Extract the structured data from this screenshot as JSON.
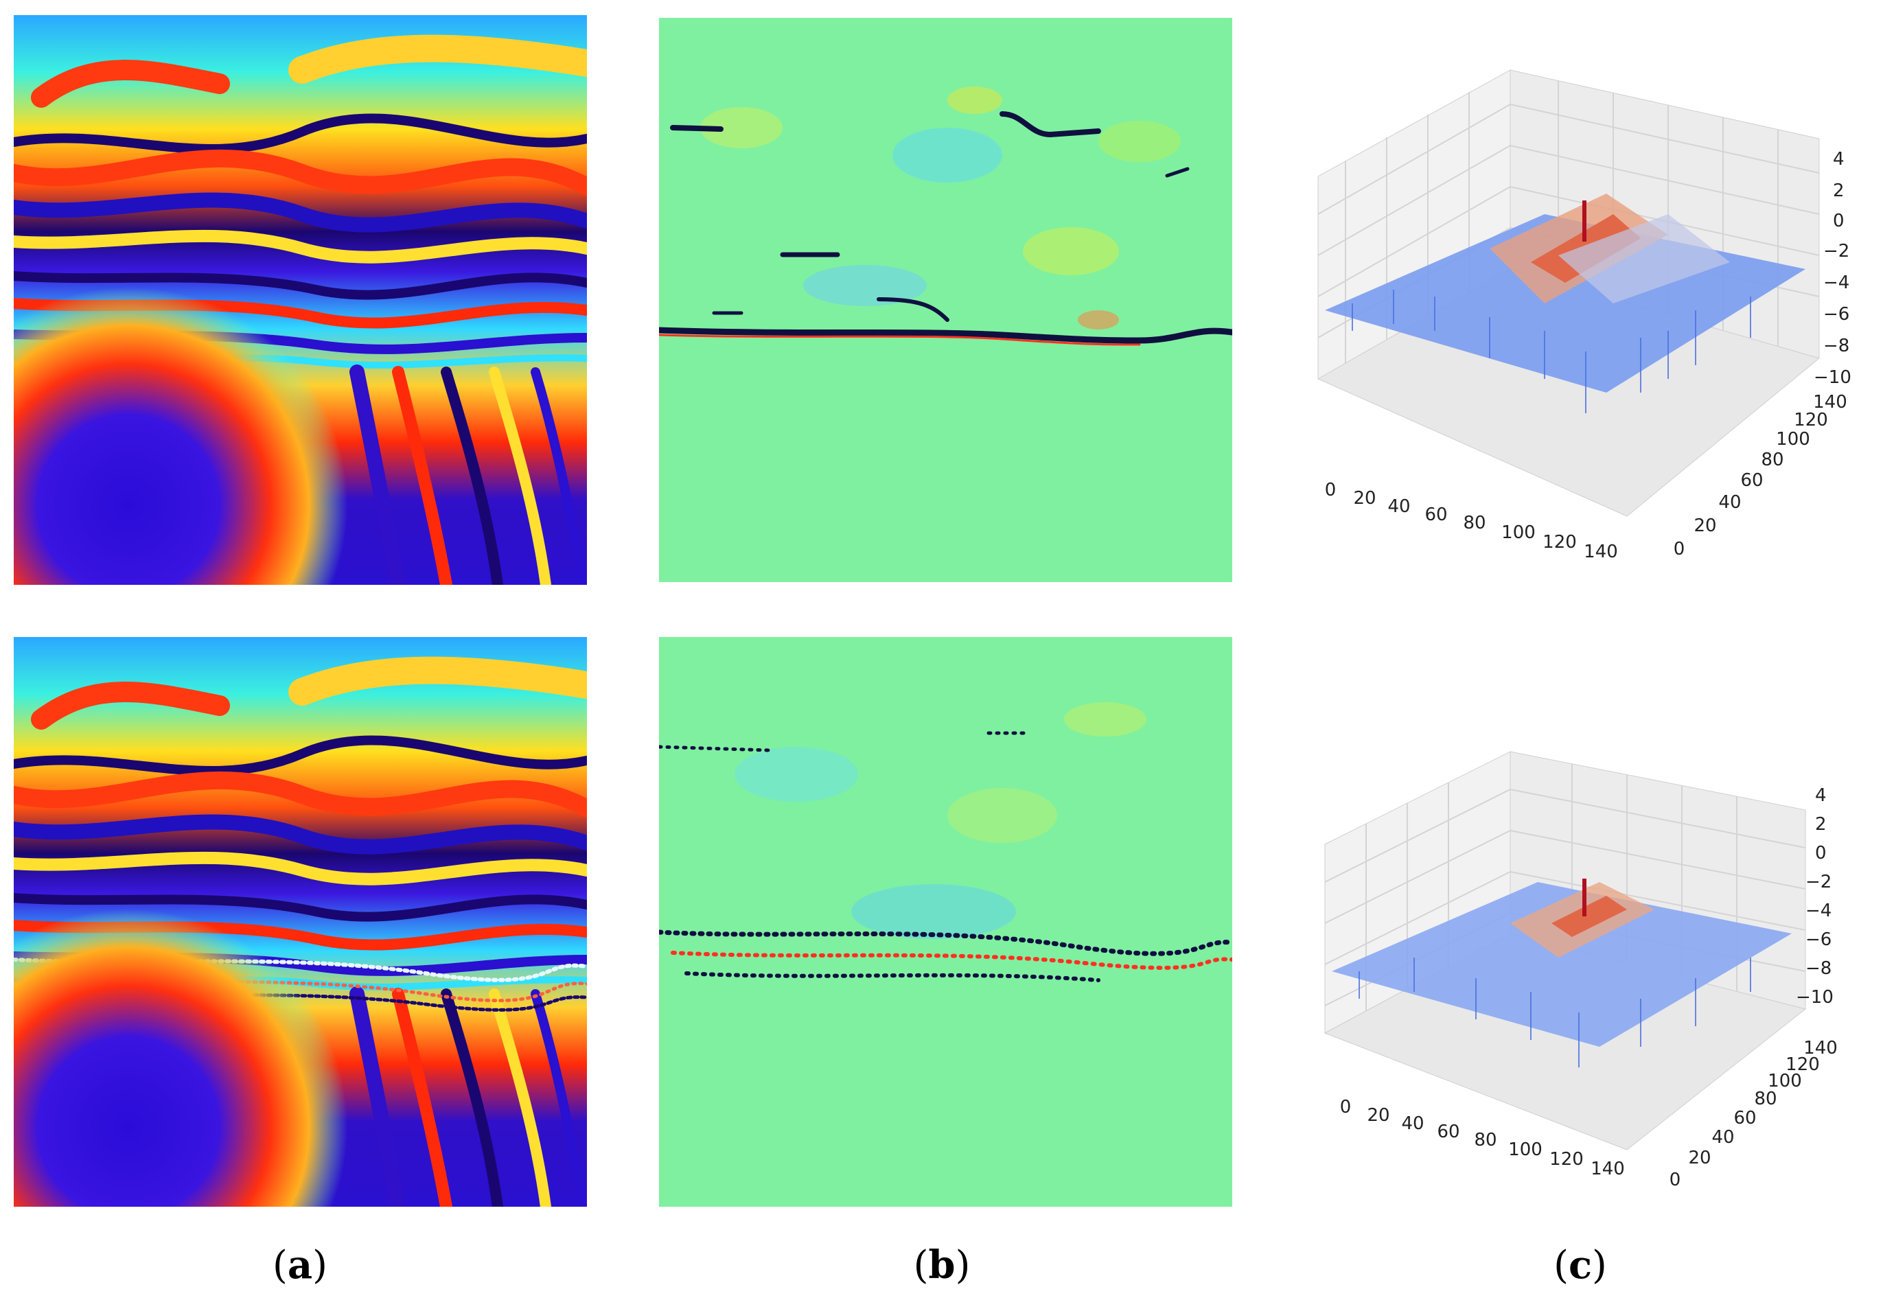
{
  "figure": {
    "captions": [
      {
        "open": "(",
        "letter": "a",
        "close": ")"
      },
      {
        "open": "(",
        "letter": "b",
        "close": ")"
      },
      {
        "open": "(",
        "letter": "c",
        "close": ")"
      }
    ],
    "plot3d": {
      "x_ticks": [
        "0",
        "20",
        "40",
        "60",
        "80",
        "100",
        "120",
        "140"
      ],
      "y_ticks": [
        "0",
        "20",
        "40",
        "60",
        "80",
        "100",
        "120",
        "140"
      ],
      "z_ticks": [
        "4",
        "2",
        "0",
        "−2",
        "−4",
        "−6",
        "−8",
        "−10"
      ]
    },
    "colors": {
      "phase_blue": "#2a0cd8",
      "phase_red": "#e01a10",
      "residual_bg": "#7ff0a0",
      "surface_blue": "#7a9cf0",
      "surface_red": "#e06848"
    }
  }
}
